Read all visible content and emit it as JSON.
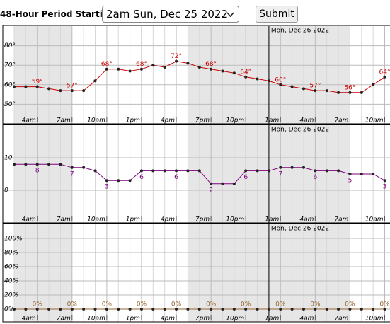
{
  "form": {
    "label": "48-Hour Period Starting:",
    "selected": "2am Sun, Dec 25 2022",
    "button": "Submit"
  },
  "chart_data": [
    {
      "type": "line",
      "date_label": "Mon, Dec 26 2022",
      "categories": [
        null,
        null,
        "4am",
        null,
        null,
        "7am",
        null,
        null,
        "10am",
        null,
        null,
        "1pm",
        null,
        null,
        "4pm",
        null,
        null,
        "7pm",
        null,
        null,
        "10pm",
        null,
        null,
        "1am",
        null,
        null,
        "4am",
        null,
        null,
        "7am",
        null,
        null,
        "10am"
      ],
      "values": [
        59,
        59,
        59,
        58,
        57,
        57,
        57,
        62,
        68,
        68,
        67,
        68,
        70,
        69,
        72,
        71,
        69,
        68,
        67,
        66,
        64,
        63,
        62,
        60,
        59,
        58,
        57,
        57,
        56,
        56,
        56,
        60,
        64
      ],
      "value_labels": [
        null,
        null,
        "59°",
        null,
        null,
        "57°",
        null,
        null,
        "68°",
        null,
        null,
        "68°",
        null,
        null,
        "72°",
        null,
        null,
        "68°",
        null,
        null,
        "64°",
        null,
        null,
        "60°",
        null,
        null,
        "57°",
        null,
        null,
        "56°",
        null,
        null,
        "64°"
      ],
      "color": "#cc0000",
      "ylim": [
        40,
        90
      ],
      "yticks": [
        {
          "value": 50,
          "label": "50°"
        },
        {
          "value": 60,
          "label": "60°"
        },
        {
          "value": 70,
          "label": "70°"
        },
        {
          "value": 80,
          "label": "80°"
        }
      ],
      "grid": true
    },
    {
      "type": "line",
      "date_label": "Mon, Dec 26 2022",
      "categories": [
        null,
        null,
        "4am",
        null,
        null,
        "7am",
        null,
        null,
        "10am",
        null,
        null,
        "1pm",
        null,
        null,
        "4pm",
        null,
        null,
        "7pm",
        null,
        null,
        "10pm",
        null,
        null,
        "1am",
        null,
        null,
        "4am",
        null,
        null,
        "7am",
        null,
        null,
        "10am"
      ],
      "values": [
        8,
        8,
        8,
        8,
        8,
        7,
        7,
        6,
        3,
        3,
        3,
        6,
        6,
        6,
        6,
        6,
        6,
        2,
        2,
        2,
        6,
        6,
        6,
        7,
        7,
        7,
        6,
        6,
        6,
        5,
        5,
        5,
        3
      ],
      "color": "#800080",
      "ylim": [
        -10,
        20
      ],
      "yticks": [
        0,
        10
      ],
      "grid": true
    },
    {
      "type": "line",
      "date_label": "Mon, Dec 26 2022",
      "categories": [
        null,
        null,
        "4am",
        null,
        null,
        "7am",
        null,
        null,
        "10am",
        null,
        null,
        "1pm",
        null,
        null,
        "4pm",
        null,
        null,
        "7pm",
        null,
        null,
        "10pm",
        null,
        null,
        "1am",
        null,
        null,
        "4am",
        null,
        null,
        "7am",
        null,
        null,
        "10am"
      ],
      "values": [
        0,
        0,
        0,
        0,
        0,
        0,
        0,
        0,
        0,
        0,
        0,
        0,
        0,
        0,
        0,
        0,
        0,
        0,
        0,
        0,
        0,
        0,
        0,
        0,
        0,
        0,
        0,
        0,
        0,
        0,
        0,
        0,
        0
      ],
      "value_labels": [
        null,
        null,
        "0%",
        null,
        null,
        "0%",
        null,
        null,
        "0%",
        null,
        null,
        "0%",
        null,
        null,
        "0%",
        null,
        null,
        "0%",
        null,
        null,
        "0%",
        null,
        null,
        "0%",
        null,
        null,
        "0%",
        null,
        null,
        "0%",
        null,
        null,
        "0%"
      ],
      "color": "#996633",
      "ylim": [
        -18,
        120
      ],
      "yticks": [
        {
          "value": 0,
          "label": "0%"
        },
        {
          "value": 20,
          "label": "20%"
        },
        {
          "value": 40,
          "label": "40%"
        },
        {
          "value": 60,
          "label": "60%"
        },
        {
          "value": 80,
          "label": "80%"
        },
        {
          "value": 100,
          "label": "100%"
        }
      ],
      "grid": true
    }
  ]
}
